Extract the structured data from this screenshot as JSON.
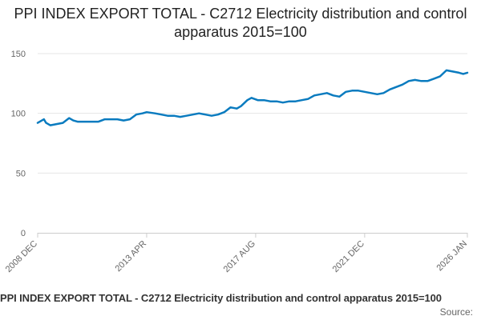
{
  "chart_data": {
    "type": "line",
    "title": "PPI INDEX EXPORT TOTAL - C2712 Electricity distribution and control apparatus 2015=100",
    "xlabel": "",
    "ylabel": "",
    "ylim": [
      0,
      150
    ],
    "yticks": [
      0,
      50,
      100,
      150
    ],
    "grid": true,
    "legend": "none",
    "line_color": "#0a7bbf",
    "xtick_labels": [
      "2008 DEC",
      "2013 APR",
      "2017 AUG",
      "2021 DEC",
      "2026 JAN"
    ],
    "xticks": [
      "2008-12",
      "2013-04",
      "2017-08",
      "2021-12",
      "2026-01"
    ],
    "series": [
      {
        "x": [
          "2008-12",
          "2009-02",
          "2009-03",
          "2009-04",
          "2009-06",
          "2009-09",
          "2009-12",
          "2010-03",
          "2010-05",
          "2010-07",
          "2010-09",
          "2010-11",
          "2011-02",
          "2011-05",
          "2011-08",
          "2011-11",
          "2012-02",
          "2012-05",
          "2012-08",
          "2012-11",
          "2013-02",
          "2013-04",
          "2013-08",
          "2013-11",
          "2014-02",
          "2014-05",
          "2014-08",
          "2014-11",
          "2015-02",
          "2015-05",
          "2015-08",
          "2015-11",
          "2016-02",
          "2016-05",
          "2016-08",
          "2016-11",
          "2017-01",
          "2017-04",
          "2017-06",
          "2017-09",
          "2017-12",
          "2018-03",
          "2018-06",
          "2018-09",
          "2018-12",
          "2019-03",
          "2019-06",
          "2019-09",
          "2019-12",
          "2020-03",
          "2020-06",
          "2020-09",
          "2020-12",
          "2021-03",
          "2021-06",
          "2021-09",
          "2021-12",
          "2022-03",
          "2022-06",
          "2022-09",
          "2022-12",
          "2023-03",
          "2023-06",
          "2023-09",
          "2023-12",
          "2024-03",
          "2024-06",
          "2024-09",
          "2024-12",
          "2025-03",
          "2025-06",
          "2025-09",
          "2025-11",
          "2026-01"
        ],
        "y": [
          92,
          94,
          95,
          92,
          90,
          91,
          92,
          96,
          94,
          93,
          93,
          93,
          93,
          93,
          95,
          95,
          95,
          94,
          95,
          99,
          100,
          101,
          100,
          99,
          98,
          98,
          97,
          98,
          99,
          100,
          99,
          98,
          99,
          101,
          105,
          104,
          106,
          111,
          113,
          111,
          111,
          110,
          110,
          109,
          110,
          110,
          111,
          112,
          115,
          116,
          117,
          115,
          114,
          118,
          119,
          119,
          118,
          117,
          116,
          117,
          120,
          122,
          124,
          127,
          128,
          127,
          127,
          129,
          131,
          136,
          135,
          134,
          133,
          134
        ]
      }
    ]
  },
  "footer": {
    "title": "PPI INDEX EXPORT TOTAL - C2712 Electricity distribution and control apparatus 2015=100",
    "source": "Source:"
  }
}
